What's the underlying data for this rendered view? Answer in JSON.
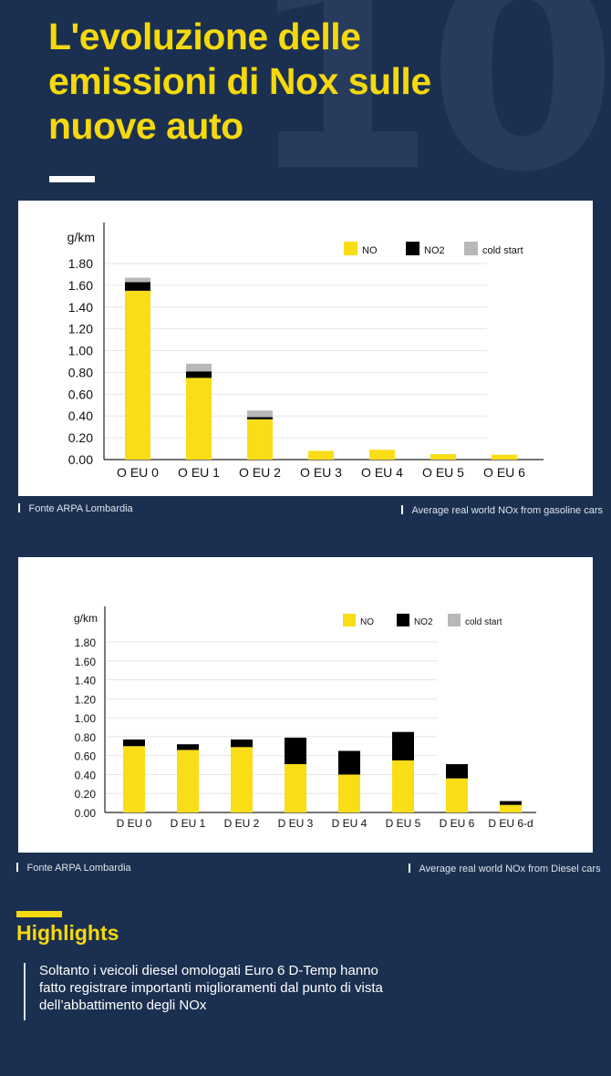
{
  "background_number": "10",
  "title": "L'evoluzione delle emissioni di Nox sulle nuove auto",
  "colors": {
    "background": "#1b3050",
    "accent": "#f5d90e",
    "no": "#f9dd17",
    "no2": "#000000",
    "cold_start": "#b8b8b8"
  },
  "charts": [
    {
      "source": "Fonte ARPA Lombardia",
      "caption": "Average real world NOx from gasoline cars"
    },
    {
      "source": "Fonte ARPA Lombardia",
      "caption": "Average real world NOx from Diesel cars"
    }
  ],
  "chart_data": [
    {
      "type": "bar",
      "stacked": true,
      "ylabel": "g/km",
      "ylim": [
        0,
        1.8
      ],
      "yticks": [
        "0.00",
        "0.20",
        "0.40",
        "0.60",
        "0.80",
        "1.00",
        "1.20",
        "1.40",
        "1.60",
        "1.80"
      ],
      "grid": true,
      "legend_position": "top-right",
      "categories": [
        "O EU 0",
        "O EU 1",
        "O EU 2",
        "O EU 3",
        "O EU 4",
        "O EU 5",
        "O EU 6"
      ],
      "series": [
        {
          "name": "NO",
          "color": "#f9dd17",
          "values": [
            1.55,
            0.75,
            0.37,
            0.08,
            0.09,
            0.05,
            0.045
          ]
        },
        {
          "name": "NO2",
          "color": "#000000",
          "values": [
            0.08,
            0.06,
            0.02,
            0.0,
            0.0,
            0.0,
            0.0
          ]
        },
        {
          "name": "cold start",
          "color": "#b8b8b8",
          "values": [
            0.04,
            0.07,
            0.06,
            0.0,
            0.0,
            0.0,
            0.0
          ]
        }
      ]
    },
    {
      "type": "bar",
      "stacked": true,
      "ylabel": "g/km",
      "ylim": [
        0,
        1.8
      ],
      "yticks": [
        "0.00",
        "0.20",
        "0.40",
        "0.60",
        "0.80",
        "1.00",
        "1.20",
        "1.40",
        "1.60",
        "1.80"
      ],
      "grid": true,
      "legend_position": "top-right",
      "categories": [
        "D EU 0",
        "D EU 1",
        "D EU 2",
        "D EU 3",
        "D EU 4",
        "D EU 5",
        "D EU 6",
        "D EU 6-d"
      ],
      "series": [
        {
          "name": "NO",
          "color": "#f9dd17",
          "values": [
            0.7,
            0.66,
            0.69,
            0.51,
            0.4,
            0.55,
            0.36,
            0.08
          ]
        },
        {
          "name": "NO2",
          "color": "#000000",
          "values": [
            0.07,
            0.06,
            0.08,
            0.28,
            0.25,
            0.3,
            0.15,
            0.04
          ]
        },
        {
          "name": "cold start",
          "color": "#b8b8b8",
          "values": [
            0,
            0,
            0,
            0,
            0,
            0,
            0,
            0
          ]
        }
      ]
    }
  ],
  "highlights": {
    "title": "Highlights",
    "text": "Soltanto i veicoli diesel omologati Euro 6 D-Temp hanno fatto registrare importanti miglioramenti dal punto di vista dell’abbattimento degli NOx"
  }
}
